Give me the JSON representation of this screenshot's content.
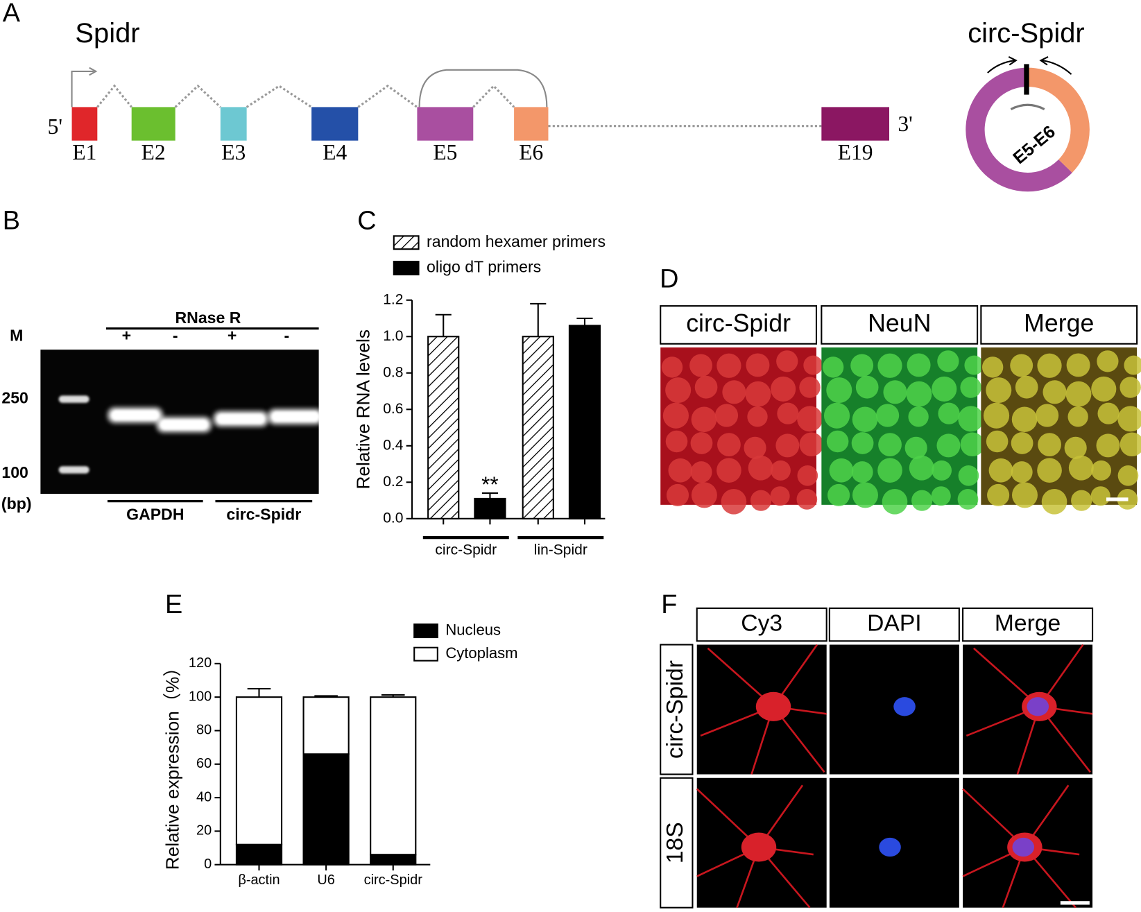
{
  "panel_labels": [
    "A",
    "B",
    "C",
    "D",
    "E",
    "F"
  ],
  "gene": {
    "title": "Spidr",
    "five_prime": "5'",
    "three_prime": "3'",
    "exons": [
      {
        "label": "E1",
        "color": "#e0262a"
      },
      {
        "label": "E2",
        "color": "#6bbf2f"
      },
      {
        "label": "E3",
        "color": "#6dc8d2"
      },
      {
        "label": "E4",
        "color": "#2450a8"
      },
      {
        "label": "E5",
        "color": "#a94fa0"
      },
      {
        "label": "E6",
        "color": "#f3976a"
      },
      {
        "label": "E19",
        "color": "#8b1762"
      }
    ]
  },
  "circ": {
    "title": "circ-Spidr",
    "junction": "E5-E6",
    "colors": [
      "#a94fa0",
      "#f3976a"
    ]
  },
  "gel": {
    "enzyme": "RNase R",
    "marker": "M",
    "lanes": [
      "+",
      "-",
      "+",
      "-"
    ],
    "sizes": [
      "250",
      "100"
    ],
    "unit": "(bp)",
    "genes": [
      "GAPDH",
      "circ-Spidr"
    ]
  },
  "chart_data": [
    {
      "type": "bar",
      "ylabel": "Relative RNA levels",
      "categories": [
        "circ-Spidr",
        "lin-Spidr"
      ],
      "series": [
        {
          "name": "random hexamer primers",
          "pattern": "hatch",
          "color": "#ffffff",
          "values": [
            1.0,
            1.0
          ],
          "errors": [
            0.12,
            0.18
          ]
        },
        {
          "name": "oligo dT primers",
          "color": "#000000",
          "values": [
            0.11,
            1.06
          ],
          "errors": [
            0.03,
            0.04
          ]
        }
      ],
      "annotations": [
        {
          "text": "**"
        }
      ],
      "ylim": [
        0,
        1.2
      ],
      "yticks": [
        {
          "value": 0,
          "label": "0.0"
        },
        {
          "value": 0.2,
          "label": "0.2"
        },
        {
          "value": 0.4,
          "label": "0.4"
        },
        {
          "value": 0.6,
          "label": "0.6"
        },
        {
          "value": 0.8,
          "label": "0.8"
        },
        {
          "value": 1,
          "label": "1.0"
        },
        {
          "value": 1.2,
          "label": "1.2"
        }
      ]
    },
    {
      "type": "stacked_bar",
      "ylabel": "Relative expression（%）",
      "categories": [
        "β-actin",
        "U6",
        "circ-Spidr"
      ],
      "series": [
        {
          "name": "Nucleus",
          "color": "#000000",
          "values": [
            12,
            66,
            6
          ],
          "errors": [
            5,
            1,
            1.5
          ]
        },
        {
          "name": "Cytoplasm",
          "color": "#ffffff",
          "values": [
            88,
            34,
            94
          ],
          "errors": [
            5,
            0.7,
            1.3
          ]
        }
      ],
      "ylim": [
        0,
        120
      ],
      "yticks": [
        0,
        20,
        40,
        60,
        80,
        100,
        120
      ]
    }
  ],
  "panel_d": {
    "headers": [
      "circ-Spidr",
      "NeuN",
      "Merge"
    ]
  },
  "panel_f": {
    "headers": [
      "Cy3",
      "DAPI",
      "Merge"
    ],
    "rows": [
      "circ-Spidr",
      "18S"
    ]
  }
}
